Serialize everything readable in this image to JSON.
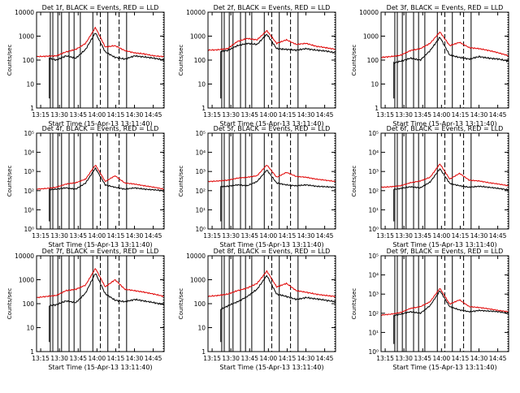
{
  "figure": {
    "background": "#ffffff",
    "events_color": "#000000",
    "lld_color": "#e00000"
  },
  "chart_data": [
    {
      "type": "line",
      "title": "Det 1f, BLACK = Events, RED = LLD",
      "ylabel": "Counts/sec",
      "xlabel": "Start Time (15-Apr-13 13:11:40)",
      "x_ticks": [
        "13:15",
        "13:30",
        "13:45",
        "14:00",
        "14:15",
        "14:30",
        "14:45"
      ],
      "y_scale": "log",
      "ylim": [
        1,
        10000
      ],
      "y_ticks": [
        "1",
        "10",
        "100",
        "1000",
        "10000"
      ],
      "x_range_min": [
        0,
        102
      ],
      "solid_markers_min": [
        11,
        13,
        17,
        20,
        26,
        30,
        35,
        45,
        57,
        72
      ],
      "dashed_markers_min": [
        51,
        66
      ],
      "dotted_markers_min": [
        102
      ],
      "curve_levels": {
        "events": [
          100,
          130,
          100,
          150,
          120,
          280,
          1400,
          220,
          130,
          110,
          150,
          135,
          120,
          100
        ],
        "lld": [
          140,
          145,
          150,
          220,
          280,
          500,
          2300,
          350,
          400,
          250,
          200,
          180,
          150,
          140
        ]
      },
      "series": [
        {
          "name": "Events",
          "color": "#000000"
        },
        {
          "name": "LLD",
          "color": "#e00000"
        }
      ]
    },
    {
      "type": "line",
      "title": "Det 2f, BLACK = Events, RED = LLD",
      "ylabel": "Counts/sec",
      "xlabel": "Start Time (15-Apr-13 13:11:40)",
      "x_ticks": [
        "13:15",
        "13:30",
        "13:45",
        "14:00",
        "14:15",
        "14:30",
        "14:45"
      ],
      "y_scale": "log",
      "ylim": [
        1,
        10000
      ],
      "y_ticks": [
        "1",
        "10",
        "100",
        "1000",
        "10000"
      ],
      "x_range_min": [
        0,
        102
      ],
      "solid_markers_min": [
        11,
        13,
        17,
        20,
        26,
        30,
        35,
        45,
        57,
        72
      ],
      "dashed_markers_min": [
        51,
        66
      ],
      "dotted_markers_min": [
        102
      ],
      "curve_levels": {
        "events": [
          200,
          220,
          250,
          400,
          500,
          450,
          1200,
          300,
          280,
          260,
          300,
          260,
          240,
          200
        ],
        "lld": [
          260,
          270,
          300,
          600,
          800,
          700,
          1700,
          500,
          700,
          450,
          500,
          380,
          330,
          280
        ]
      },
      "series": [
        {
          "name": "Events",
          "color": "#000000"
        },
        {
          "name": "LLD",
          "color": "#e00000"
        }
      ]
    },
    {
      "type": "line",
      "title": "Det 3f, BLACK = Events, RED = LLD",
      "ylabel": "Counts/sec",
      "xlabel": "Start Time (15-Apr-13 13:11:40)",
      "x_ticks": [
        "13:15",
        "13:30",
        "13:45",
        "14:00",
        "14:15",
        "14:30",
        "14:45"
      ],
      "y_scale": "log",
      "ylim": [
        1,
        10000
      ],
      "y_ticks": [
        "1",
        "10",
        "100",
        "1000",
        "10000"
      ],
      "x_range_min": [
        0,
        102
      ],
      "solid_markers_min": [
        11,
        13,
        17,
        20,
        26,
        30,
        35,
        45,
        57,
        72
      ],
      "dashed_markers_min": [
        51,
        66
      ],
      "dotted_markers_min": [
        102
      ],
      "curve_levels": {
        "events": [
          60,
          70,
          90,
          120,
          100,
          250,
          900,
          160,
          130,
          110,
          140,
          120,
          110,
          90
        ],
        "lld": [
          130,
          140,
          160,
          250,
          300,
          500,
          1500,
          400,
          550,
          330,
          300,
          250,
          200,
          150
        ]
      },
      "series": [
        {
          "name": "Events",
          "color": "#000000"
        },
        {
          "name": "LLD",
          "color": "#e00000"
        }
      ]
    },
    {
      "type": "line",
      "title": "Det 4f, BLACK = Events, RED = LLD",
      "ylabel": "Counts/sec",
      "xlabel": "Start Time (15-Apr-13 13:11:40)",
      "x_ticks": [
        "13:15",
        "13:30",
        "13:45",
        "14:00",
        "14:15",
        "14:30",
        "14:45"
      ],
      "y_scale": "log",
      "ylim": [
        1,
        100000
      ],
      "y_ticks": [
        "10⁰",
        "10¹",
        "10²",
        "10³",
        "10⁴",
        "10⁵"
      ],
      "x_range_min": [
        0,
        102
      ],
      "solid_markers_min": [
        11,
        13,
        17,
        20,
        26,
        30,
        35,
        45,
        57,
        72
      ],
      "dashed_markers_min": [
        51,
        66
      ],
      "dotted_markers_min": [
        102
      ],
      "curve_levels": {
        "events": [
          100,
          110,
          120,
          140,
          120,
          250,
          1500,
          200,
          150,
          120,
          140,
          120,
          110,
          100
        ],
        "lld": [
          120,
          130,
          150,
          220,
          260,
          400,
          2200,
          300,
          600,
          250,
          220,
          180,
          150,
          120
        ]
      },
      "series": [
        {
          "name": "Events",
          "color": "#000000"
        },
        {
          "name": "LLD",
          "color": "#e00000"
        }
      ]
    },
    {
      "type": "line",
      "title": "Det 5f, BLACK = Events, RED = LLD",
      "ylabel": "Counts/sec",
      "xlabel": "Start Time (15-Apr-13 13:11:40)",
      "x_ticks": [
        "13:15",
        "13:30",
        "13:45",
        "14:00",
        "14:15",
        "14:30",
        "14:45"
      ],
      "y_scale": "log",
      "ylim": [
        1,
        100000
      ],
      "y_ticks": [
        "10⁰",
        "10¹",
        "10²",
        "10³",
        "10⁴",
        "10⁵"
      ],
      "x_range_min": [
        0,
        102
      ],
      "solid_markers_min": [
        11,
        13,
        17,
        20,
        26,
        30,
        35,
        45,
        57,
        72
      ],
      "dashed_markers_min": [
        51,
        66
      ],
      "dotted_markers_min": [
        102
      ],
      "curve_levels": {
        "events": [
          150,
          160,
          170,
          200,
          180,
          300,
          1200,
          250,
          200,
          180,
          200,
          170,
          160,
          150
        ],
        "lld": [
          300,
          320,
          350,
          450,
          500,
          600,
          2200,
          500,
          900,
          550,
          500,
          400,
          350,
          300
        ]
      },
      "series": [
        {
          "name": "Events",
          "color": "#000000"
        },
        {
          "name": "LLD",
          "color": "#e00000"
        }
      ]
    },
    {
      "type": "line",
      "title": "Det 6f, BLACK = Events, RED = LLD",
      "ylabel": "Counts/sec",
      "xlabel": "Start Time (15-Apr-13 13:11:40)",
      "x_ticks": [
        "13:15",
        "13:30",
        "13:45",
        "14:00",
        "14:15",
        "14:30",
        "14:45"
      ],
      "y_scale": "log",
      "ylim": [
        1,
        100000
      ],
      "y_ticks": [
        "10⁰",
        "10¹",
        "10²",
        "10³",
        "10⁴",
        "10⁵"
      ],
      "x_range_min": [
        0,
        102
      ],
      "solid_markers_min": [
        11,
        13,
        17,
        20,
        26,
        30,
        35,
        45,
        57,
        72
      ],
      "dashed_markers_min": [
        51,
        66
      ],
      "dotted_markers_min": [
        102
      ],
      "curve_levels": {
        "events": [
          100,
          110,
          130,
          160,
          140,
          280,
          1400,
          240,
          180,
          150,
          170,
          150,
          130,
          110
        ],
        "lld": [
          150,
          160,
          180,
          260,
          320,
          500,
          2500,
          400,
          800,
          350,
          320,
          260,
          220,
          180
        ]
      },
      "series": [
        {
          "name": "Events",
          "color": "#000000"
        },
        {
          "name": "LLD",
          "color": "#e00000"
        }
      ]
    },
    {
      "type": "line",
      "title": "Det 7f, BLACK = Events, RED = LLD",
      "ylabel": "Counts/sec",
      "xlabel": "Start Time (15-Apr-13 13:11:40)",
      "x_ticks": [
        "13:15",
        "13:30",
        "13:45",
        "14:00",
        "14:15",
        "14:30",
        "14:45"
      ],
      "y_scale": "log",
      "ylim": [
        1,
        10000
      ],
      "y_ticks": [
        "1",
        "10",
        "100",
        "1000",
        "10000"
      ],
      "x_range_min": [
        0,
        102
      ],
      "solid_markers_min": [
        11,
        13,
        17,
        20,
        26,
        30,
        35,
        45,
        57,
        72
      ],
      "dashed_markers_min": [
        51,
        66
      ],
      "dotted_markers_min": [
        102
      ],
      "curve_levels": {
        "events": [
          60,
          80,
          90,
          130,
          110,
          280,
          1900,
          260,
          140,
          120,
          150,
          130,
          110,
          90
        ],
        "lld": [
          180,
          200,
          220,
          350,
          400,
          600,
          3000,
          500,
          1000,
          400,
          350,
          300,
          250,
          200
        ]
      },
      "series": [
        {
          "name": "Events",
          "color": "#000000"
        },
        {
          "name": "LLD",
          "color": "#e00000"
        }
      ]
    },
    {
      "type": "line",
      "title": "Det 8f, BLACK = Events, RED = LLD",
      "ylabel": "Counts/sec",
      "xlabel": "Start Time (15-Apr-13 13:11:40)",
      "x_ticks": [
        "13:15",
        "13:30",
        "13:45",
        "14:00",
        "14:15",
        "14:30",
        "14:45"
      ],
      "y_scale": "log",
      "ylim": [
        1,
        10000
      ],
      "y_ticks": [
        "1",
        "10",
        "100",
        "1000",
        "10000"
      ],
      "x_range_min": [
        0,
        102
      ],
      "solid_markers_min": [
        11,
        13,
        17,
        20,
        26,
        30,
        35,
        45,
        57,
        72
      ],
      "dashed_markers_min": [
        51,
        66
      ],
      "dotted_markers_min": [
        102
      ],
      "curve_levels": {
        "events": [
          40,
          50,
          80,
          120,
          200,
          400,
          1500,
          250,
          200,
          150,
          180,
          160,
          140,
          120
        ],
        "lld": [
          200,
          220,
          250,
          350,
          450,
          700,
          2300,
          500,
          700,
          350,
          300,
          250,
          220,
          200
        ]
      },
      "series": [
        {
          "name": "Events",
          "color": "#000000"
        },
        {
          "name": "LLD",
          "color": "#e00000"
        }
      ]
    },
    {
      "type": "line",
      "title": "Det 9f, BLACK = Events, RED = LLD",
      "ylabel": "Counts/sec",
      "xlabel": "Start Time (15-Apr-13 13:11:40)",
      "x_ticks": [
        "13:15",
        "13:30",
        "13:45",
        "14:00",
        "14:15",
        "14:30",
        "14:45"
      ],
      "y_scale": "log",
      "ylim": [
        1,
        100000
      ],
      "y_ticks": [
        "10⁰",
        "10¹",
        "10²",
        "10³",
        "10⁴",
        "10⁵"
      ],
      "x_range_min": [
        0,
        102
      ],
      "solid_markers_min": [
        11,
        13,
        17,
        20,
        26,
        30,
        35,
        45,
        57,
        72
      ],
      "dashed_markers_min": [
        51,
        66
      ],
      "dotted_markers_min": [
        102
      ],
      "curve_levels": {
        "events": [
          60,
          70,
          90,
          120,
          100,
          250,
          1500,
          220,
          150,
          120,
          140,
          130,
          120,
          100
        ],
        "lld": [
          80,
          90,
          110,
          180,
          220,
          400,
          2000,
          300,
          500,
          220,
          200,
          170,
          140,
          120
        ]
      },
      "series": [
        {
          "name": "Events",
          "color": "#000000"
        },
        {
          "name": "LLD",
          "color": "#e00000"
        }
      ]
    }
  ]
}
